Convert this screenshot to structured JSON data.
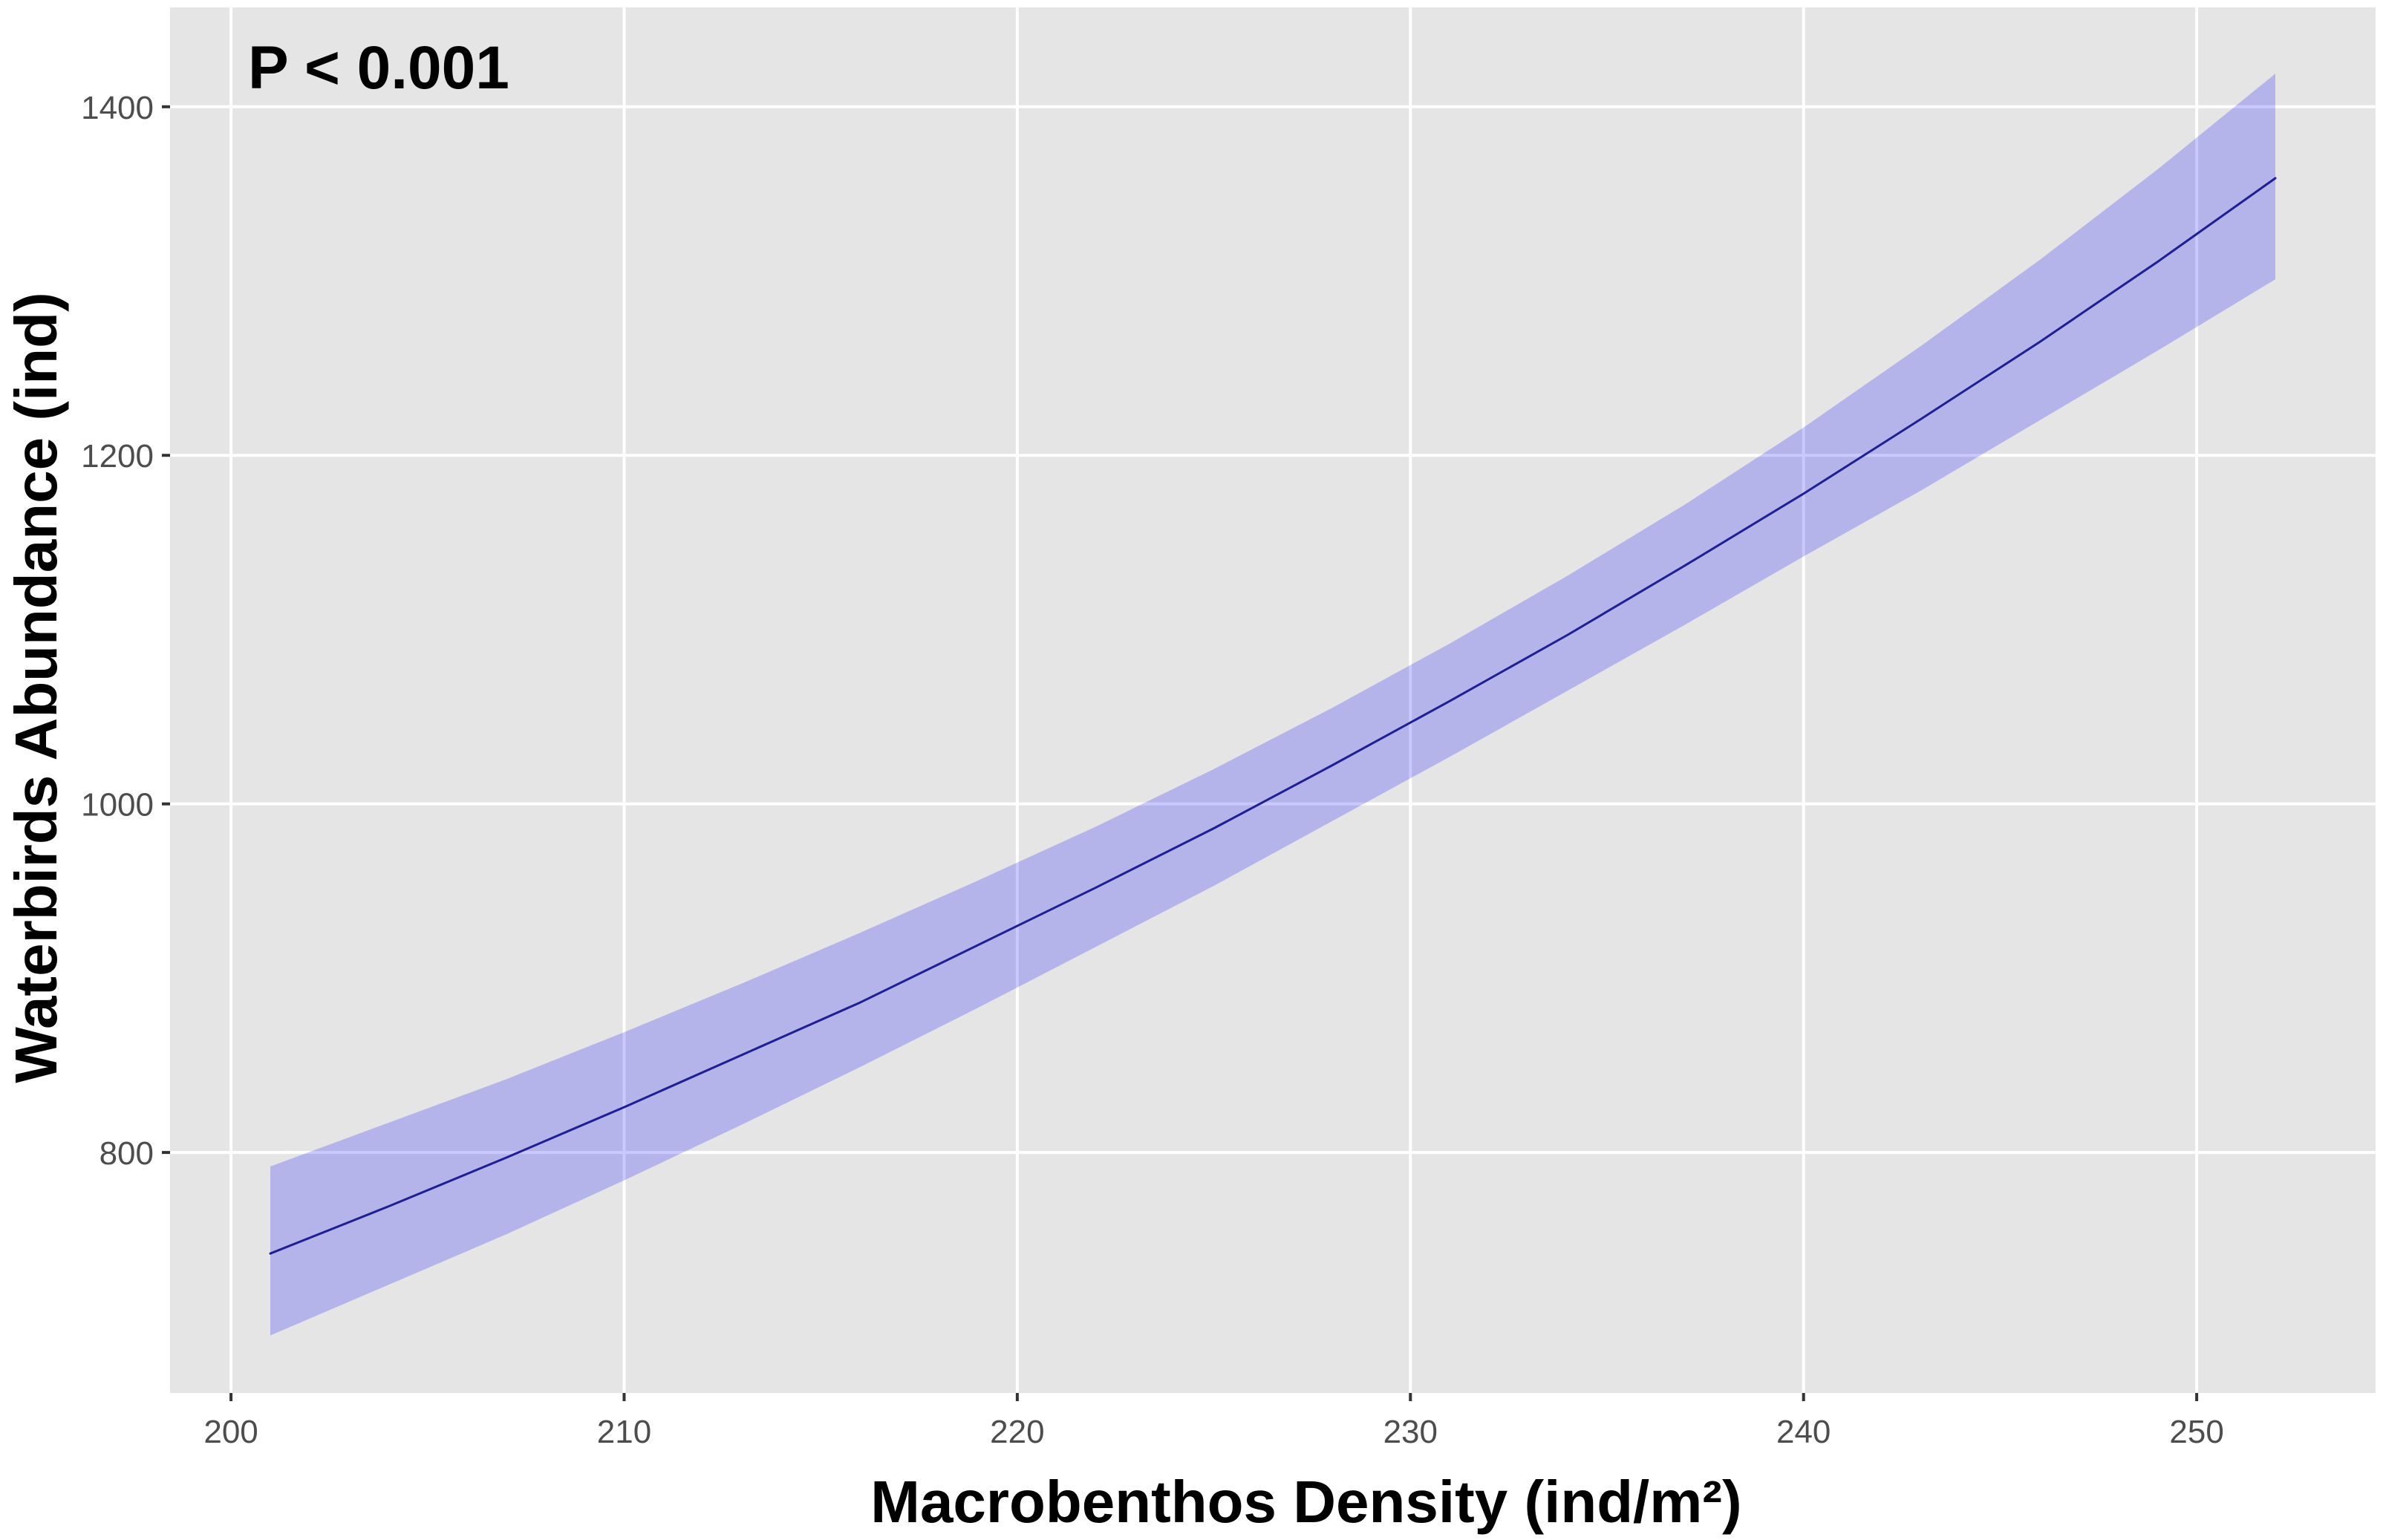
{
  "chart_data": {
    "type": "line",
    "annotation": "P < 0.001",
    "xlabel": "Macrobenthos Density (ind/m²)",
    "ylabel": "Waterbirds Abundance (ind)",
    "xlim": [
      198.45,
      254.55
    ],
    "ylim": [
      662,
      1457
    ],
    "x_ticks": [
      200,
      210,
      220,
      230,
      240,
      250
    ],
    "y_ticks": [
      800,
      1000,
      1200,
      1400
    ],
    "grid": true,
    "x": [
      201,
      204,
      207,
      210,
      213,
      216,
      219,
      222,
      225,
      228,
      231,
      234,
      237,
      240,
      243,
      246,
      249,
      252
    ],
    "series": [
      {
        "values": [
          742,
          769,
          797,
          826,
          856,
          886,
          919,
          952,
          986,
          1022,
          1059,
          1097,
          1137,
          1178,
          1221,
          1265,
          1311,
          1359
        ],
        "lower": [
          695,
          724,
          753,
          784,
          816,
          849,
          883,
          918,
          953,
          990,
          1027,
          1065,
          1103,
          1142,
          1180,
          1220,
          1260,
          1301
        ],
        "upper": [
          792,
          817,
          842,
          869,
          897,
          926,
          956,
          987,
          1020,
          1055,
          1092,
          1131,
          1172,
          1216,
          1263,
          1312,
          1364,
          1419
        ]
      }
    ],
    "colors": {
      "panel_background": "#E5E5E5",
      "grid": "#FFFFFF",
      "ribbon": "#0000FF",
      "line": "#1E1E96",
      "tick_label": "#4D4D4D",
      "axis_tick": "#333333"
    }
  }
}
